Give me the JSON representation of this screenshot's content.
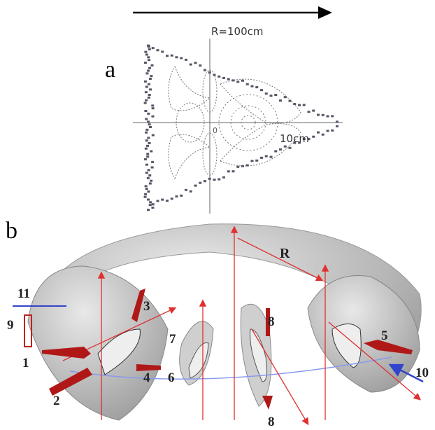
{
  "panel_a": {
    "label": "a",
    "major_radius": "R=100cm",
    "scale": "10cm",
    "origin": "0"
  },
  "panel_b": {
    "label": "b",
    "major_radius": "R",
    "markers": [
      "1",
      "2",
      "3",
      "4",
      "5",
      "6",
      "7",
      "8",
      "8",
      "9",
      "10",
      "11"
    ]
  }
}
